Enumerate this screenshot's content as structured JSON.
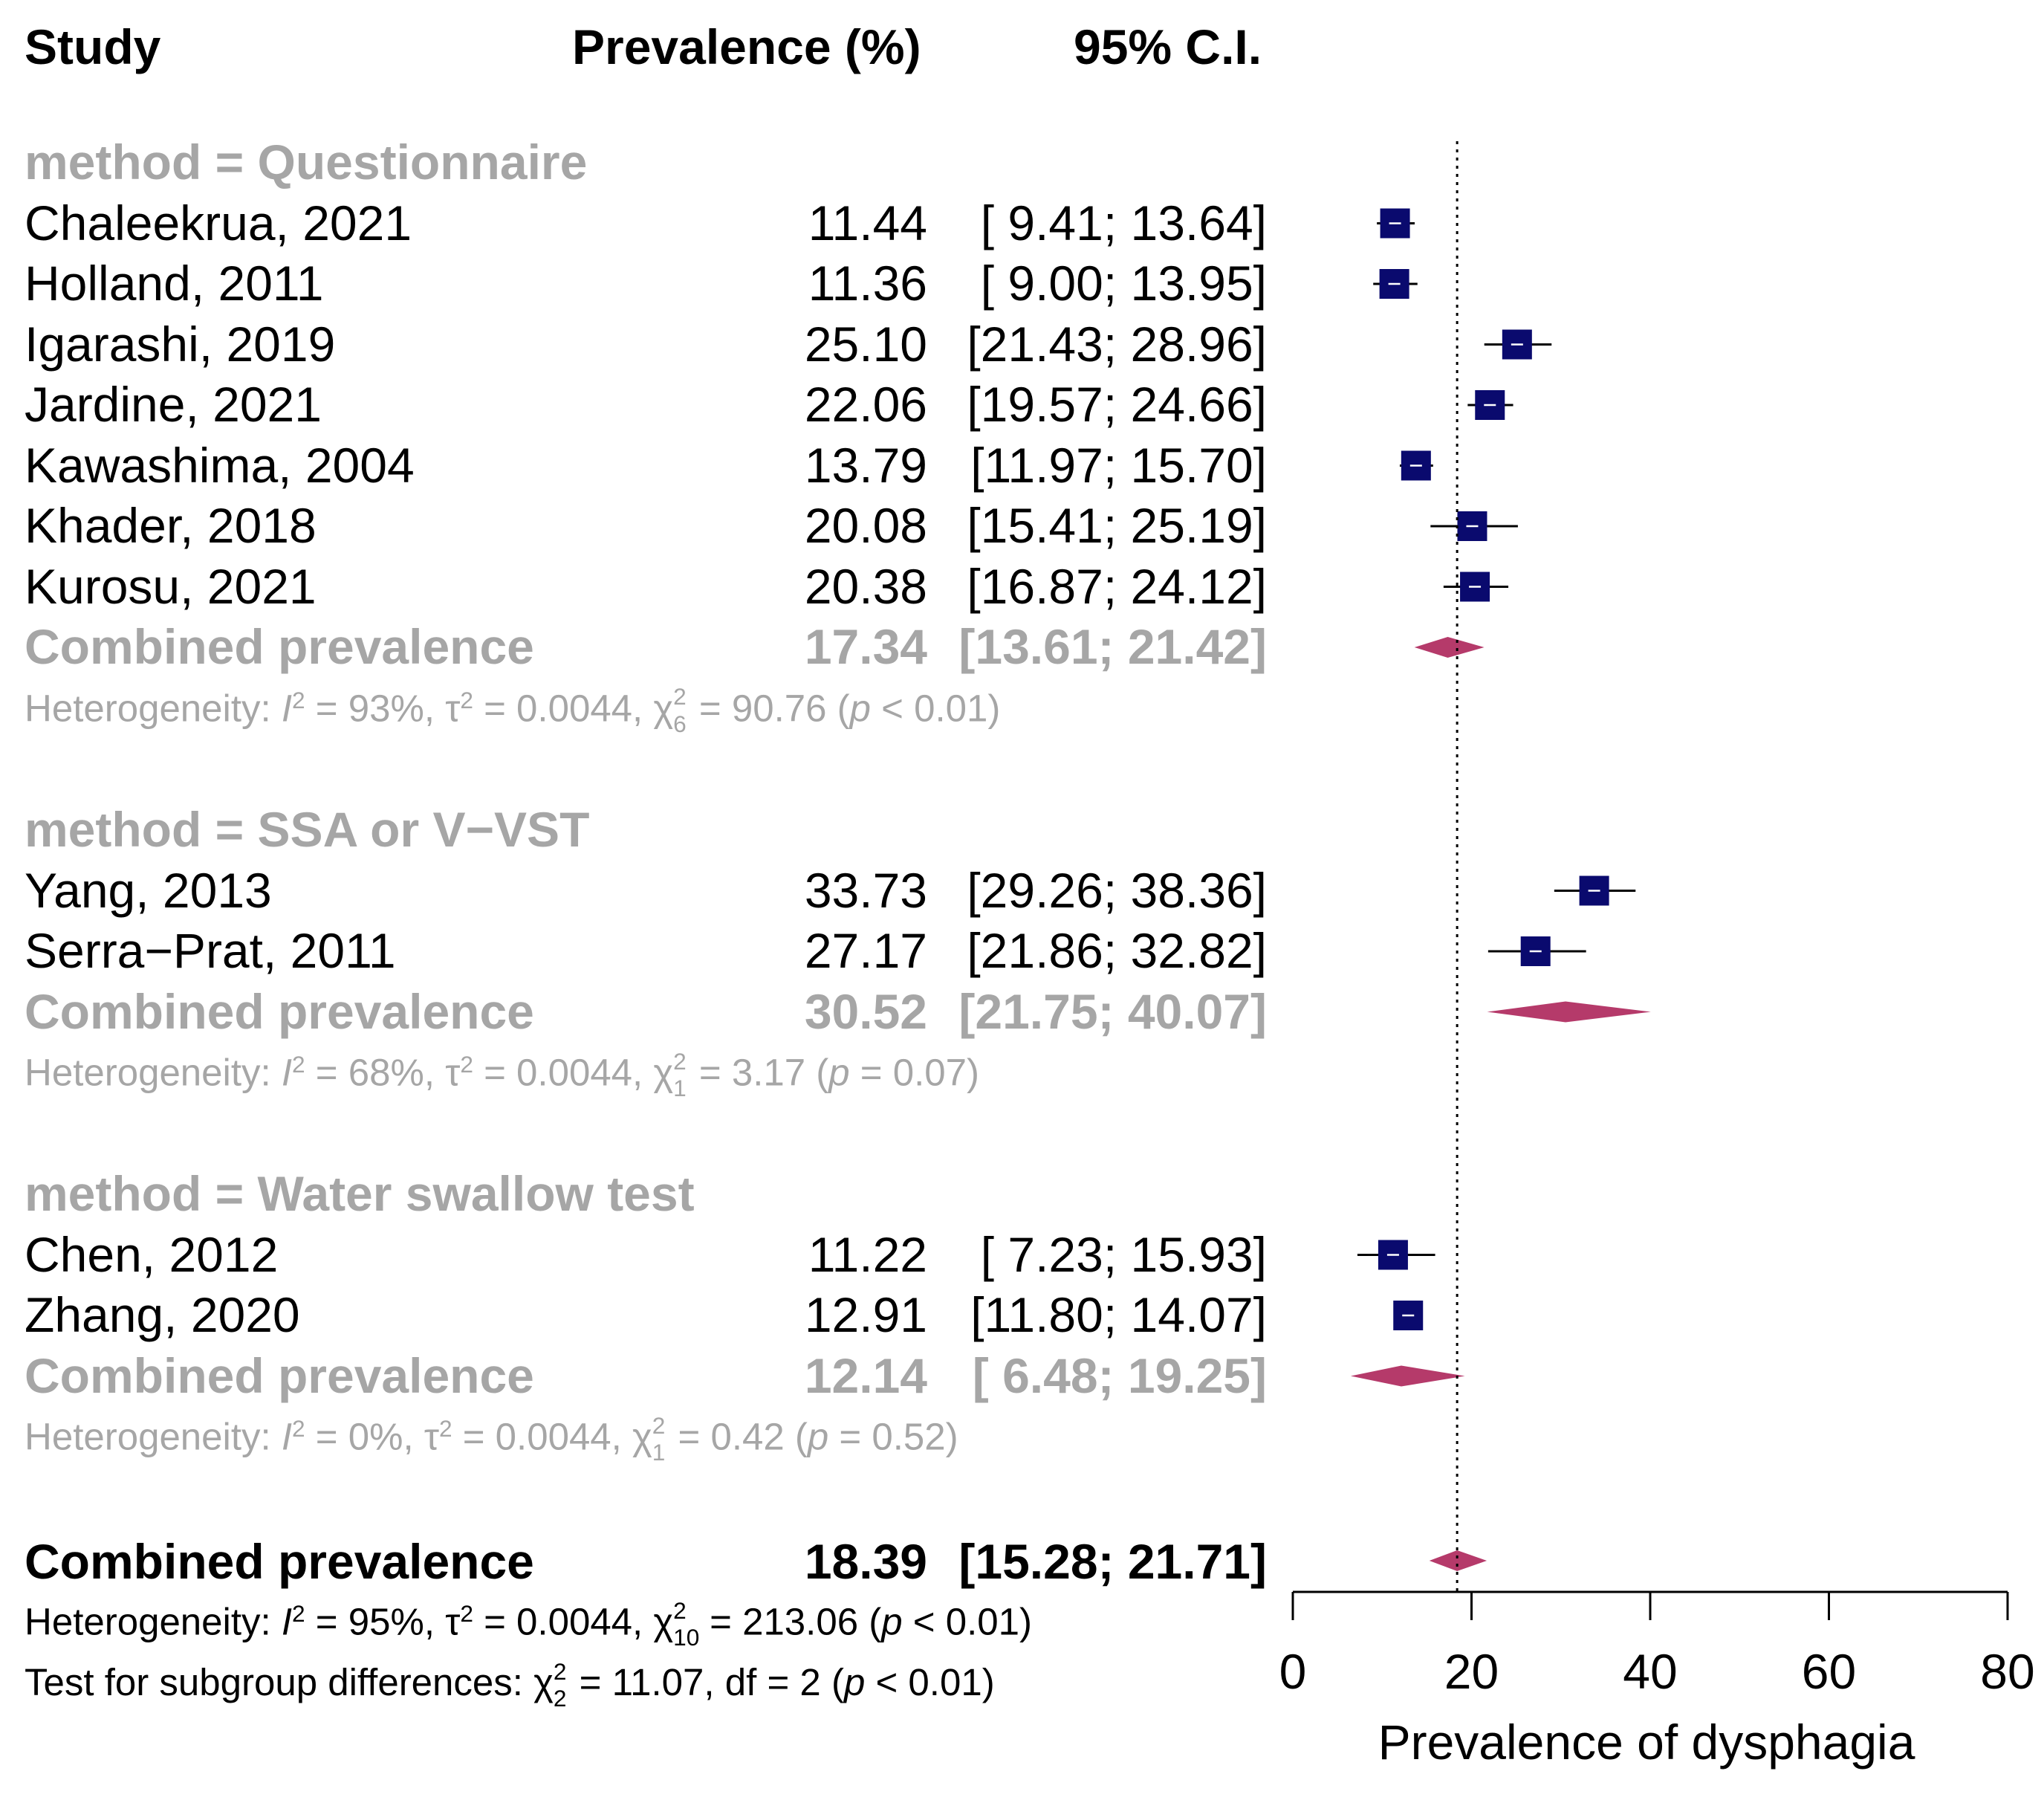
{
  "headers": {
    "study": "Study",
    "prevalence": "Prevalence (%)",
    "ci": "95% C.I."
  },
  "colors": {
    "square": "#0a0a6e",
    "diamond": "#b53a6a",
    "gray_text": "#a6a6a6",
    "line": "#000000"
  },
  "chart_data": {
    "type": "forest",
    "xlabel": "Prevalence of dysphagia",
    "xlim": [
      0,
      80
    ],
    "xticks": [
      0,
      20,
      40,
      60,
      80
    ],
    "reference_line": 18.39,
    "groups": [
      {
        "label": "method = Questionnaire",
        "studies": [
          {
            "name": "Chaleekrua, 2021",
            "est": 11.44,
            "lo": 9.41,
            "hi": 13.64,
            "est_text": "11.44",
            "ci_text": "[ 9.41; 13.64]"
          },
          {
            "name": "Holland, 2011",
            "est": 11.36,
            "lo": 9.0,
            "hi": 13.95,
            "est_text": "11.36",
            "ci_text": "[ 9.00; 13.95]"
          },
          {
            "name": "Igarashi, 2019",
            "est": 25.1,
            "lo": 21.43,
            "hi": 28.96,
            "est_text": "25.10",
            "ci_text": "[21.43; 28.96]"
          },
          {
            "name": "Jardine, 2021",
            "est": 22.06,
            "lo": 19.57,
            "hi": 24.66,
            "est_text": "22.06",
            "ci_text": "[19.57; 24.66]"
          },
          {
            "name": "Kawashima, 2004",
            "est": 13.79,
            "lo": 11.97,
            "hi": 15.7,
            "est_text": "13.79",
            "ci_text": "[11.97; 15.70]"
          },
          {
            "name": "Khader, 2018",
            "est": 20.08,
            "lo": 15.41,
            "hi": 25.19,
            "est_text": "20.08",
            "ci_text": "[15.41; 25.19]"
          },
          {
            "name": "Kurosu, 2021",
            "est": 20.38,
            "lo": 16.87,
            "hi": 24.12,
            "est_text": "20.38",
            "ci_text": "[16.87; 24.12]"
          }
        ],
        "combined": {
          "label": "Combined prevalence",
          "est": 17.34,
          "lo": 13.61,
          "hi": 21.42,
          "est_text": "17.34",
          "ci_text": "[13.61; 21.42]"
        },
        "heterogeneity": {
          "prefix": "Heterogeneity: ",
          "i2": " = 93%, ",
          "tau": " = 0.0044, ",
          "chi_df": "6",
          "chi_rest": " = 90.76 (",
          "p": " < 0.01)"
        }
      },
      {
        "label": "method = SSA or V−VST",
        "studies": [
          {
            "name": "Yang, 2013",
            "est": 33.73,
            "lo": 29.26,
            "hi": 38.36,
            "est_text": "33.73",
            "ci_text": "[29.26; 38.36]"
          },
          {
            "name": "Serra−Prat, 2011",
            "est": 27.17,
            "lo": 21.86,
            "hi": 32.82,
            "est_text": "27.17",
            "ci_text": "[21.86; 32.82]"
          }
        ],
        "combined": {
          "label": "Combined prevalence",
          "est": 30.52,
          "lo": 21.75,
          "hi": 40.07,
          "est_text": "30.52",
          "ci_text": "[21.75; 40.07]"
        },
        "heterogeneity": {
          "prefix": "Heterogeneity: ",
          "i2": " = 68%, ",
          "tau": " = 0.0044, ",
          "chi_df": "1",
          "chi_rest": " = 3.17 (",
          "p": " = 0.07)"
        }
      },
      {
        "label": "method = Water swallow test",
        "studies": [
          {
            "name": "Chen, 2012",
            "est": 11.22,
            "lo": 7.23,
            "hi": 15.93,
            "est_text": "11.22",
            "ci_text": "[ 7.23; 15.93]"
          },
          {
            "name": "Zhang, 2020",
            "est": 12.91,
            "lo": 11.8,
            "hi": 14.07,
            "est_text": "12.91",
            "ci_text": "[11.80; 14.07]"
          }
        ],
        "combined": {
          "label": "Combined prevalence",
          "est": 12.14,
          "lo": 6.48,
          "hi": 19.25,
          "est_text": "12.14",
          "ci_text": "[ 6.48; 19.25]"
        },
        "heterogeneity": {
          "prefix": "Heterogeneity: ",
          "i2": " = 0%, ",
          "tau": " = 0.0044, ",
          "chi_df": "1",
          "chi_rest": " = 0.42 (",
          "p": " = 0.52)"
        }
      }
    ],
    "overall": {
      "label": "Combined prevalence",
      "est": 18.39,
      "lo": 15.28,
      "hi": 21.71,
      "est_text": "18.39",
      "ci_text": "[15.28; 21.71]",
      "heterogeneity": {
        "prefix": "Heterogeneity: ",
        "i2": " = 95%, ",
        "tau": " = 0.0044, ",
        "chi_df": "10",
        "chi_rest": " = 213.06 (",
        "p": " < 0.01)"
      },
      "subgroup_test": {
        "prefix": "Test for subgroup differences: ",
        "chi_df": "2",
        "rest": " = 11.07, df = 2 (",
        "p": " < 0.01)"
      }
    }
  }
}
